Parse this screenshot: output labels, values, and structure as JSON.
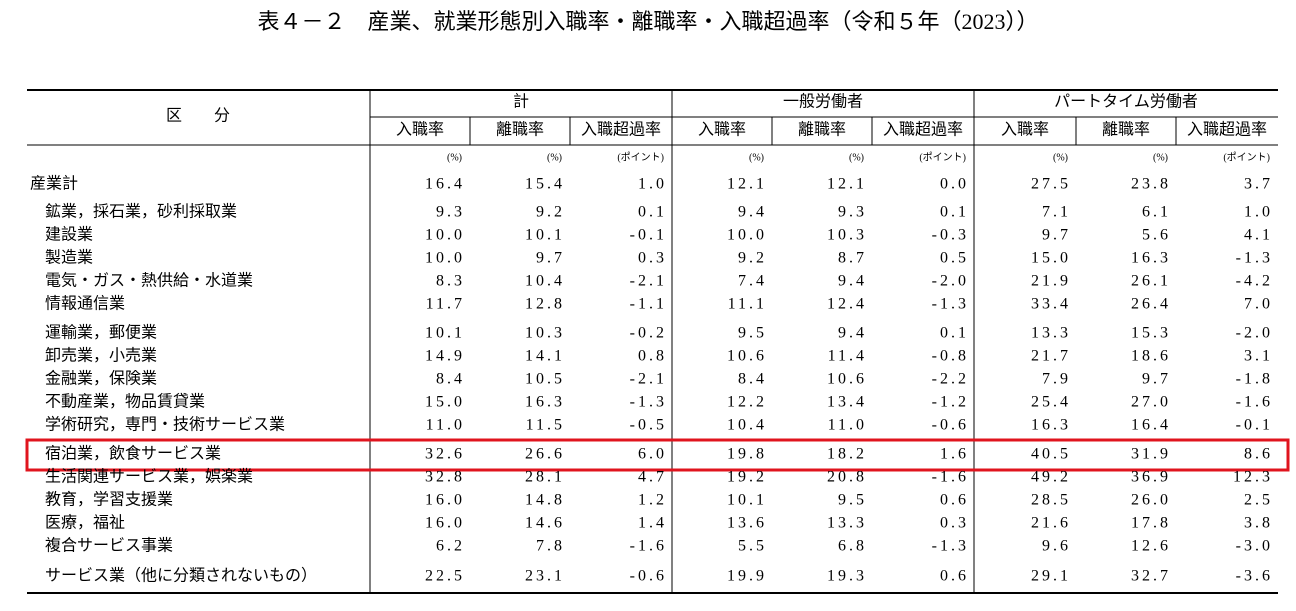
{
  "title": "表４－２　産業、就業形態別入職率・離職率・入職超過率（令和５年（2023））",
  "table": {
    "stub_header": "区　　分",
    "groups": [
      {
        "name": "計",
        "columns": [
          "入職率",
          "離職率",
          "入職超過率"
        ],
        "units": [
          "(%)",
          "(%)",
          "(ポイント)"
        ]
      },
      {
        "name": "一般労働者",
        "columns": [
          "入職率",
          "離職率",
          "入職超過率"
        ],
        "units": [
          "(%)",
          "(%)",
          "(ポイント)"
        ]
      },
      {
        "name": "パートタイム労働者",
        "columns": [
          "入職率",
          "離職率",
          "入職超過率"
        ],
        "units": [
          "(%)",
          "(%)",
          "(ポイント)"
        ]
      }
    ],
    "rows": [
      {
        "label": "産業計",
        "cells": [
          "16.4",
          "15.4",
          "1.0",
          "12.1",
          "12.1",
          "0.0",
          "27.5",
          "23.8",
          "3.7"
        ]
      },
      {
        "label": "鉱業，採石業，砂利採取業",
        "cells": [
          "9.3",
          "9.2",
          "0.1",
          "9.4",
          "9.3",
          "0.1",
          "7.1",
          "6.1",
          "1.0"
        ]
      },
      {
        "label": "建設業",
        "cells": [
          "10.0",
          "10.1",
          "-0.1",
          "10.0",
          "10.3",
          "-0.3",
          "9.7",
          "5.6",
          "4.1"
        ]
      },
      {
        "label": "製造業",
        "cells": [
          "10.0",
          "9.7",
          "0.3",
          "9.2",
          "8.7",
          "0.5",
          "15.0",
          "16.3",
          "-1.3"
        ]
      },
      {
        "label": "電気・ガス・熱供給・水道業",
        "cells": [
          "8.3",
          "10.4",
          "-2.1",
          "7.4",
          "9.4",
          "-2.0",
          "21.9",
          "26.1",
          "-4.2"
        ]
      },
      {
        "label": "情報通信業",
        "cells": [
          "11.7",
          "12.8",
          "-1.1",
          "11.1",
          "12.4",
          "-1.3",
          "33.4",
          "26.4",
          "7.0"
        ]
      },
      {
        "label": "運輸業，郵便業",
        "cells": [
          "10.1",
          "10.3",
          "-0.2",
          "9.5",
          "9.4",
          "0.1",
          "13.3",
          "15.3",
          "-2.0"
        ]
      },
      {
        "label": "卸売業，小売業",
        "cells": [
          "14.9",
          "14.1",
          "0.8",
          "10.6",
          "11.4",
          "-0.8",
          "21.7",
          "18.6",
          "3.1"
        ]
      },
      {
        "label": "金融業，保険業",
        "cells": [
          "8.4",
          "10.5",
          "-2.1",
          "8.4",
          "10.6",
          "-2.2",
          "7.9",
          "9.7",
          "-1.8"
        ]
      },
      {
        "label": "不動産業，物品賃貸業",
        "cells": [
          "15.0",
          "16.3",
          "-1.3",
          "12.2",
          "13.4",
          "-1.2",
          "25.4",
          "27.0",
          "-1.6"
        ]
      },
      {
        "label": "学術研究，専門・技術サービス業",
        "cells": [
          "11.0",
          "11.5",
          "-0.5",
          "10.4",
          "11.0",
          "-0.6",
          "16.3",
          "16.4",
          "-0.1"
        ]
      },
      {
        "label": "宿泊業，飲食サービス業",
        "cells": [
          "32.6",
          "26.6",
          "6.0",
          "19.8",
          "18.2",
          "1.6",
          "40.5",
          "31.9",
          "8.6"
        ]
      },
      {
        "label": "生活関連サービス業，娯楽業",
        "cells": [
          "32.8",
          "28.1",
          "4.7",
          "19.2",
          "20.8",
          "-1.6",
          "49.2",
          "36.9",
          "12.3"
        ]
      },
      {
        "label": "教育，学習支援業",
        "cells": [
          "16.0",
          "14.8",
          "1.2",
          "10.1",
          "9.5",
          "0.6",
          "28.5",
          "26.0",
          "2.5"
        ]
      },
      {
        "label": "医療，福祉",
        "cells": [
          "16.0",
          "14.6",
          "1.4",
          "13.6",
          "13.3",
          "0.3",
          "21.6",
          "17.8",
          "3.8"
        ]
      },
      {
        "label": "複合サービス事業",
        "cells": [
          "6.2",
          "7.8",
          "-1.6",
          "5.5",
          "6.8",
          "-1.3",
          "9.6",
          "12.6",
          "-3.0"
        ]
      },
      {
        "label": "サービス業（他に分類されないもの）",
        "cells": [
          "22.5",
          "23.1",
          "-0.6",
          "19.9",
          "19.3",
          "0.6",
          "29.1",
          "32.7",
          "-3.6"
        ]
      }
    ]
  }
}
